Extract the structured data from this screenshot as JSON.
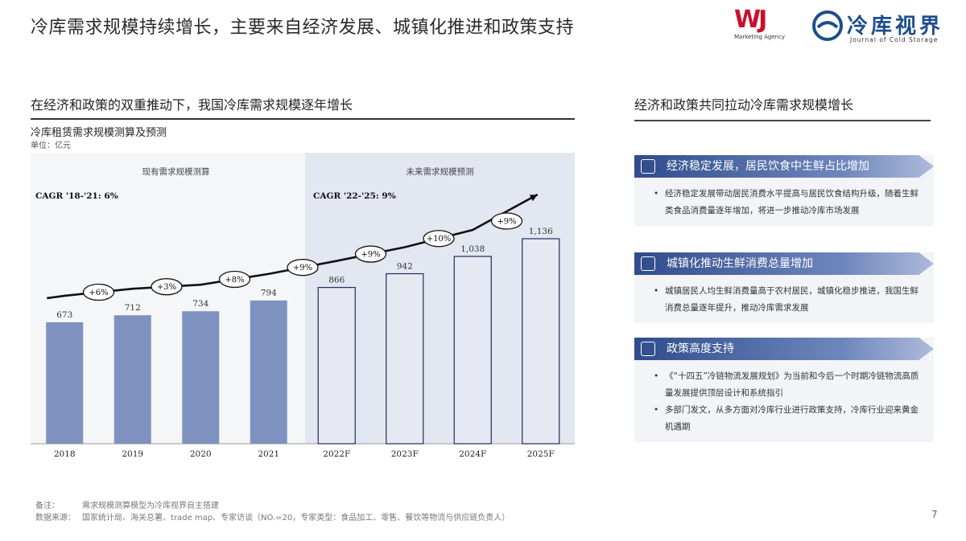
{
  "page": {
    "title": "冷库需求规模持续增长，主要来自经济发展、城镇化推进和政策支持",
    "page_number": "7"
  },
  "logos": {
    "wj": {
      "mark": "WJ",
      "sub": "Marketing Agency"
    },
    "journal": {
      "cn": "冷库视界",
      "en": "Journal of Cold Storage"
    }
  },
  "left": {
    "heading": "在经济和政策的双重推动下，我国冷库需求规模逐年增长",
    "chart_title": "冷库租赁需求规模测算及预测",
    "unit": "单位：亿元"
  },
  "chart_data": {
    "type": "bar",
    "title": "冷库租赁需求规模测算及预测",
    "ylabel": "单位：亿元",
    "categories": [
      "2018",
      "2019",
      "2020",
      "2021",
      "2022F",
      "2023F",
      "2024F",
      "2025F"
    ],
    "values": [
      673,
      712,
      734,
      794,
      866,
      942,
      1038,
      1136
    ],
    "value_labels": [
      "673",
      "712",
      "734",
      "794",
      "866",
      "942",
      "1,038",
      "1,136"
    ],
    "growth_labels": [
      "+6%",
      "+3%",
      "+8%",
      "+9%",
      "+9%",
      "+10%",
      "+9%"
    ],
    "sections": [
      {
        "label": "现有需求规模测算",
        "cagr": "CAGR '18-'21: 6%",
        "range": [
          0,
          3
        ]
      },
      {
        "label": "未来需求规模预测",
        "cagr": "CAGR '22-'25: 9%",
        "range": [
          4,
          7
        ]
      }
    ],
    "colors": {
      "actual_fill": "#7f92bf",
      "forecast_fill": "#e6e9f2",
      "forecast_stroke": "#1f2f55",
      "section_bg_left": "#f5f6f8",
      "section_bg_right": "#e3e7f2"
    }
  },
  "right": {
    "heading": "经济和政策共同拉动冷库需求规模增长",
    "panels": [
      {
        "icon": "trend-chart-icon",
        "title": "经济稳定发展，居民饮食中生鲜占比增加",
        "bullets": [
          "经济稳定发展带动居民消费水平提高与居民饮食结构升级，随着生鲜类食品消费量逐年增加，将进一步推动冷库市场发展"
        ]
      },
      {
        "icon": "building-icon",
        "title": "城镇化推动生鲜消费总量增加",
        "bullets": [
          "城镇居民人均生鲜消费量高于农村居民，城镇化稳步推进，我国生鲜消费总量逐年提升，推动冷库需求发展"
        ]
      },
      {
        "icon": "document-icon",
        "title": "政策高度支持",
        "bullets": [
          "《“十四五”冷链物流发展规划》为当前和今后一个时期冷链物流高质量发展提供顶层设计和系统指引",
          "多部门发文，从多方面对冷库行业进行政策支持，冷库行业迎来黄金机遇期"
        ]
      }
    ]
  },
  "footnote": {
    "note_label": "备注：",
    "note_text": "需求规模测算模型为冷库视界自主搭建",
    "source_label": "数据来源：",
    "source_text": "国家统计局、海关总署、trade map、专家访谈（NO.=20，专家类型：食品加工、零售、餐饮等物流与供应链负责人）"
  }
}
